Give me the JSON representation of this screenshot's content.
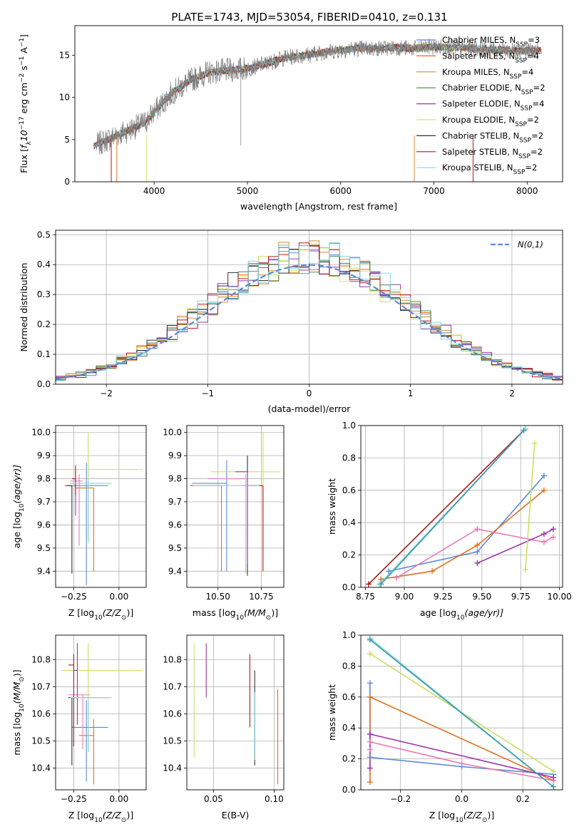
{
  "figure": {
    "title": "PLATE=1743, MJD=53054, FIBERID=0410, z=0.131"
  },
  "chart_data": [
    {
      "id": "spectrum",
      "type": "line",
      "xlabel": "wavelength [Angstrom, rest frame]",
      "ylabel": "Flux [f_λ 10^-17 erg cm^-2 s^-1 A^-1]",
      "ylabel_parts": [
        "Flux [",
        "f",
        "λ",
        "10",
        "−17",
        " erg cm",
        "−2",
        " s",
        "−1",
        " A",
        "−1",
        "]"
      ],
      "xlim": [
        3150,
        8380
      ],
      "ylim": [
        0,
        18.5
      ],
      "xticks": [
        4000,
        5000,
        6000,
        7000,
        8000
      ],
      "yticks": [
        0,
        5,
        10,
        15
      ],
      "legend_position": "top-right",
      "series": [
        {
          "name": "Chabrier MILES",
          "nssp": "3",
          "color": "#5b8bd8"
        },
        {
          "name": "Salpeter MILES",
          "nssp": "4",
          "color": "#e0701f"
        },
        {
          "name": "Kroupa MILES",
          "nssp": "4",
          "color": "#d98a2a"
        },
        {
          "name": "Chabrier ELODIE",
          "nssp": "2",
          "color": "#3b8a4a"
        },
        {
          "name": "Salpeter ELODIE",
          "nssp": "4",
          "color": "#9b35b0"
        },
        {
          "name": "Kroupa ELODIE",
          "nssp": "2",
          "color": "#d8e060"
        },
        {
          "name": "Chabrier STELIB",
          "nssp": "2",
          "color": "#333333"
        },
        {
          "name": "Salpeter STELIB",
          "nssp": "2",
          "color": "#b01818"
        },
        {
          "name": "Kroupa STELIB",
          "nssp": "2",
          "color": "#80d8e0"
        }
      ],
      "data_color": "#808080",
      "continuum": {
        "x": [
          3350,
          3500,
          3700,
          3900,
          4000,
          4200,
          4400,
          4600,
          4800,
          5000,
          5200,
          5400,
          5600,
          5800,
          6000,
          6200,
          6400,
          6600,
          6800,
          7000,
          7200,
          7400,
          7600,
          7800,
          8000,
          8150
        ],
        "y": [
          4.2,
          5.0,
          6.0,
          7.0,
          8.3,
          10.6,
          12.1,
          13.0,
          13.2,
          13.4,
          14.0,
          14.7,
          15.0,
          15.3,
          15.6,
          15.8,
          15.8,
          15.9,
          15.8,
          16.0,
          15.9,
          15.8,
          15.7,
          15.6,
          15.5,
          15.6
        ]
      }
    },
    {
      "id": "residuals",
      "type": "line",
      "xlabel": "(data-model)/error",
      "ylabel": "Normed distribution",
      "xlim": [
        -2.5,
        2.5
      ],
      "ylim": [
        0,
        0.515
      ],
      "xticks": [
        -2,
        -1,
        0,
        1,
        2
      ],
      "yticks": [
        0.0,
        0.1,
        0.2,
        0.3,
        0.4,
        0.5
      ],
      "legend_position": "top-right",
      "gaussian_label": "N(0,1)",
      "gaussian_color": "#5b8bd8",
      "bin_width": 0.1
    },
    {
      "id": "age-vs-Z",
      "type": "scatter",
      "xlabel_parts": [
        "Z [log",
        "10",
        "(Z/Z",
        "⊙",
        ")]"
      ],
      "ylabel_parts": [
        "age  [log",
        "10",
        "(age/yr)]"
      ],
      "xlim": [
        -0.35,
        0.15
      ],
      "ylim": [
        9.33,
        10.03
      ],
      "xticks": [
        -0.25,
        0.0
      ],
      "xticks_labels": [
        "−0.25",
        "0.00"
      ],
      "yticks": [
        9.4,
        9.5,
        9.6,
        9.7,
        9.8,
        9.9,
        10.0
      ],
      "points": [
        {
          "x": -0.18,
          "y": 9.77,
          "xerr": [
            0.12,
            0.12
          ],
          "yerr": [
            0.43,
            0.1
          ],
          "color": "#5b8bd8"
        },
        {
          "x": -0.14,
          "y": 9.76,
          "xerr": [
            0.1,
            0.0
          ],
          "yerr": [
            0.36,
            0.0
          ],
          "color": "#e0701f"
        },
        {
          "x": -0.22,
          "y": 9.79,
          "xerr": [
            0.05,
            0.02
          ],
          "yerr": [
            0.28,
            0.03
          ],
          "color": "#e87ab8"
        },
        {
          "x": -0.17,
          "y": 9.84,
          "xerr": [
            0.3,
            0.3
          ],
          "yerr": [
            0.32,
            0.16
          ],
          "color": "#c8e060"
        },
        {
          "x": -0.26,
          "y": 9.77,
          "xerr": [
            0.03,
            0.0
          ],
          "yerr": [
            0.38,
            0.0
          ],
          "color": "#333333"
        },
        {
          "x": -0.24,
          "y": 9.78,
          "xerr": [
            0.02,
            0.03
          ],
          "yerr": [
            0.14,
            0.08
          ],
          "color": "#9b35b0"
        },
        {
          "x": -0.24,
          "y": 9.8,
          "xerr": [
            0.02,
            0.0
          ],
          "yerr": [
            0.07,
            0.05
          ],
          "color": "#b01818"
        },
        {
          "x": -0.17,
          "y": 9.78,
          "xerr": [
            0.1,
            0.13
          ],
          "yerr": [
            0.25,
            0.02
          ],
          "color": "#80d8e0"
        }
      ]
    },
    {
      "id": "age-vs-mass",
      "type": "scatter",
      "xlabel_parts": [
        "mass [log",
        "10",
        "(M/M",
        "⊙",
        ")]"
      ],
      "ylabel": "",
      "xlim": [
        10.32,
        10.88
      ],
      "ylim": [
        9.33,
        10.03
      ],
      "xticks": [
        10.5,
        10.75
      ],
      "xticks_labels": [
        "10.50",
        "10.75"
      ],
      "yticks": [
        9.4,
        9.5,
        9.6,
        9.7,
        9.8,
        9.9,
        10.0
      ],
      "points": [
        {
          "x": 10.55,
          "y": 9.78,
          "xerr": [
            0.2,
            0.0
          ],
          "yerr": [
            0.38,
            0.1
          ],
          "color": "#5b8bd8"
        },
        {
          "x": 10.52,
          "y": 9.77,
          "xerr": [
            0.18,
            0.0
          ],
          "yerr": [
            0.37,
            0.0
          ],
          "color": "#e0701f"
        },
        {
          "x": 10.66,
          "y": 9.8,
          "xerr": [
            0.22,
            0.0
          ],
          "yerr": [
            0.25,
            0.0
          ],
          "color": "#e87ab8"
        },
        {
          "x": 10.76,
          "y": 9.83,
          "xerr": [
            0.3,
            0.1
          ],
          "yerr": [
            0.32,
            0.17
          ],
          "color": "#c8e060"
        },
        {
          "x": 10.67,
          "y": 9.83,
          "xerr": [
            0.0,
            0.0
          ],
          "yerr": [
            0.45,
            0.07
          ],
          "color": "#333333"
        },
        {
          "x": 10.67,
          "y": 9.83,
          "xerr": [
            0.07,
            0.0
          ],
          "yerr": [
            0.4,
            0.0
          ],
          "color": "#9b35b0"
        },
        {
          "x": 10.76,
          "y": 9.77,
          "xerr": [
            0.12,
            0.0
          ],
          "yerr": [
            0.37,
            0.0
          ],
          "color": "#b01818"
        },
        {
          "x": 10.66,
          "y": 9.77,
          "xerr": [
            0.3,
            0.08
          ],
          "yerr": [
            0.38,
            0.05
          ],
          "color": "#80d8e0"
        }
      ]
    },
    {
      "id": "mass-weight-vs-age",
      "type": "line",
      "xlabel_parts": [
        "age  [log",
        "10",
        "(age/yr)]"
      ],
      "ylabel": "mass weight",
      "xlim": [
        8.72,
        10.02
      ],
      "ylim": [
        0,
        1.0
      ],
      "xticks": [
        8.75,
        9.0,
        9.25,
        9.5,
        9.75,
        10.0
      ],
      "xticks_labels": [
        "8.75",
        "9.00",
        "9.25",
        "9.50",
        "9.75",
        "10.00"
      ],
      "yticks": [
        0.0,
        0.2,
        0.4,
        0.6,
        0.8,
        1.0
      ],
      "series": [
        {
          "color": "#5b8bd8",
          "x": [
            8.9,
            9.47,
            9.9
          ],
          "y": [
            0.1,
            0.22,
            0.69
          ]
        },
        {
          "color": "#e0701f",
          "x": [
            8.85,
            9.18,
            9.47,
            9.9
          ],
          "y": [
            0.05,
            0.1,
            0.26,
            0.6
          ]
        },
        {
          "color": "#e87ab8",
          "x": [
            8.95,
            9.47,
            9.9,
            9.96
          ],
          "y": [
            0.06,
            0.36,
            0.28,
            0.31
          ]
        },
        {
          "color": "#9b35b0",
          "x": [
            9.47,
            9.9,
            9.96
          ],
          "y": [
            0.15,
            0.33,
            0.36
          ]
        },
        {
          "color": "#b01818",
          "x": [
            8.77,
            9.78
          ],
          "y": [
            0.02,
            0.98
          ]
        },
        {
          "color": "#c8e060",
          "x": [
            9.78,
            9.84
          ],
          "y": [
            0.11,
            0.89
          ]
        },
        {
          "color": "#80d8e0",
          "x": [
            8.84,
            9.78
          ],
          "y": [
            0.02,
            0.98
          ]
        },
        {
          "color": "#3d9aa8",
          "x": [
            8.85,
            9.77
          ],
          "y": [
            0.02,
            0.97
          ]
        }
      ]
    },
    {
      "id": "mass-vs-Z",
      "type": "scatter",
      "xlabel_parts": [
        "Z [log",
        "10",
        "(Z/Z",
        "⊙",
        ")]"
      ],
      "ylabel_parts": [
        "mass [log",
        "10",
        "(M/M",
        "⊙",
        ")]"
      ],
      "xlim": [
        -0.35,
        0.15
      ],
      "ylim": [
        10.32,
        10.89
      ],
      "xticks": [
        -0.25,
        0.0
      ],
      "xticks_labels": [
        "−0.25",
        "0.00"
      ],
      "yticks": [
        10.4,
        10.5,
        10.6,
        10.7,
        10.8
      ],
      "points": [
        {
          "x": -0.18,
          "y": 10.55,
          "xerr": [
            0.08,
            0.12
          ],
          "yerr": [
            0.2,
            0.1
          ],
          "color": "#5b8bd8"
        },
        {
          "x": -0.14,
          "y": 10.52,
          "xerr": [
            0.08,
            0.0
          ],
          "yerr": [
            0.18,
            0.06
          ],
          "color": "#e0701f"
        },
        {
          "x": -0.2,
          "y": 10.67,
          "xerr": [
            0.08,
            0.04
          ],
          "yerr": [
            0.2,
            0.0
          ],
          "color": "#e87ab8"
        },
        {
          "x": -0.17,
          "y": 10.76,
          "xerr": [
            0.15,
            0.3
          ],
          "yerr": [
            0.3,
            0.1
          ],
          "color": "#c8e060"
        },
        {
          "x": -0.26,
          "y": 10.66,
          "xerr": [
            0.02,
            0.2
          ],
          "yerr": [
            0.25,
            0.0
          ],
          "color": "#333333"
        },
        {
          "x": -0.23,
          "y": 10.76,
          "xerr": [
            0.02,
            0.0
          ],
          "yerr": [
            0.2,
            0.1
          ],
          "color": "#9b35b0"
        },
        {
          "x": -0.25,
          "y": 10.78,
          "xerr": [
            0.03,
            0.0
          ],
          "yerr": [
            0.3,
            0.04
          ],
          "color": "#b01818"
        },
        {
          "x": -0.17,
          "y": 10.66,
          "xerr": [
            0.1,
            0.13
          ],
          "yerr": [
            0.2,
            0.0
          ],
          "color": "#80d8e0"
        }
      ]
    },
    {
      "id": "mass-vs-EBV",
      "type": "scatter",
      "xlabel": "E(B-V)",
      "xlim": [
        0.028,
        0.108
      ],
      "ylim": [
        10.32,
        10.89
      ],
      "xticks": [
        0.05,
        0.1
      ],
      "xticks_labels": [
        "0.05",
        "0.10"
      ],
      "yticks": [
        10.4,
        10.5,
        10.6,
        10.7,
        10.8
      ],
      "points": [
        {
          "x": 0.034,
          "y": 10.64,
          "yerr": [
            0.2,
            0.22
          ],
          "color": "#c8e060"
        },
        {
          "x": 0.044,
          "y": 10.76,
          "yerr": [
            0.1,
            0.1
          ],
          "color": "#9b35b0"
        },
        {
          "x": 0.08,
          "y": 10.69,
          "yerr": [
            0.14,
            0.13
          ],
          "color": "#b01818"
        },
        {
          "x": 0.084,
          "y": 10.58,
          "yerr": [
            0.17,
            0.18
          ],
          "color": "#333333"
        },
        {
          "x": 0.084,
          "y": 10.58,
          "yerr": [
            0.15,
            0.1
          ],
          "color": "#80d8e0"
        },
        {
          "x": 0.103,
          "y": 10.51,
          "yerr": [
            0.17,
            0.18
          ],
          "color": "#e0701f"
        }
      ]
    },
    {
      "id": "mass-weight-vs-Z",
      "type": "line",
      "xlabel_parts": [
        "Z [log",
        "10",
        "(Z/Z",
        "⊙",
        ")]"
      ],
      "ylabel": "mass weight",
      "xlim": [
        -0.33,
        0.33
      ],
      "ylim": [
        0,
        1.0
      ],
      "xticks": [
        -0.2,
        0.0,
        0.2
      ],
      "xticks_labels": [
        "−0.2",
        "0.0",
        "0.2"
      ],
      "yticks": [
        0.0,
        0.2,
        0.4,
        0.6,
        0.8,
        1.0
      ],
      "series": [
        {
          "color": "#5b8bd8",
          "x": [
            -0.3,
            -0.3,
            0.0,
            0.3
          ],
          "y": [
            0.69,
            0.21,
            0.15,
            0.1
          ]
        },
        {
          "color": "#e0701f",
          "x": [
            -0.3,
            -0.3,
            0.3
          ],
          "y": [
            0.05,
            0.6,
            0.06
          ]
        },
        {
          "color": "#e87ab8",
          "x": [
            -0.3,
            -0.3,
            0.0,
            0.3
          ],
          "y": [
            0.26,
            0.31,
            0.17,
            0.06
          ]
        },
        {
          "color": "#9b35b0",
          "x": [
            -0.3,
            -0.3,
            0.3
          ],
          "y": [
            0.14,
            0.36,
            0.08
          ]
        },
        {
          "color": "#c8e060",
          "x": [
            -0.3,
            0.3
          ],
          "y": [
            0.88,
            0.12
          ]
        },
        {
          "color": "#80d8e0",
          "x": [
            -0.3,
            0.3
          ],
          "y": [
            0.98,
            0.02
          ]
        },
        {
          "color": "#3d9aa8",
          "x": [
            -0.3,
            0.3
          ],
          "y": [
            0.97,
            0.02
          ]
        }
      ]
    }
  ]
}
